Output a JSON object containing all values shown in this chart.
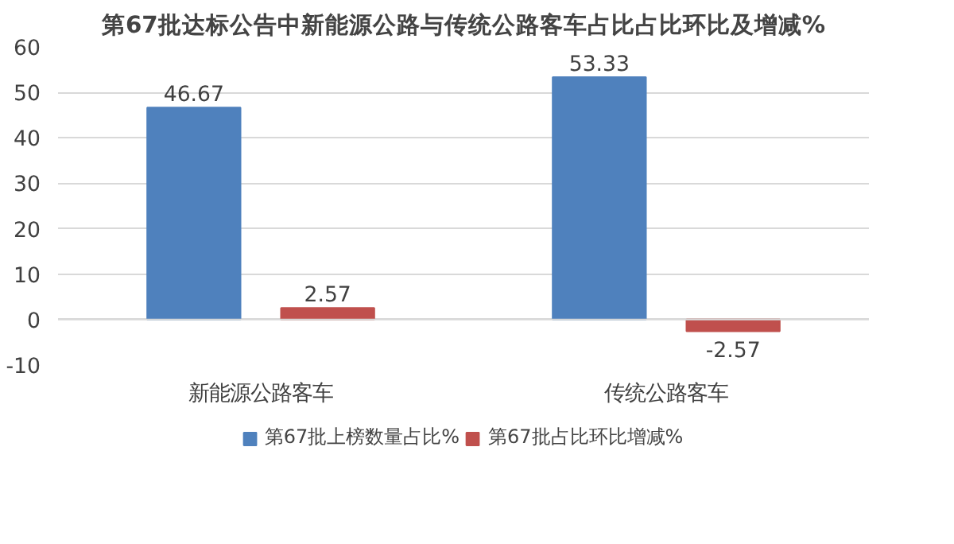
{
  "chart_data": {
    "type": "bar",
    "title": "第67批达标公告中新能源公路与传统公路客车占比占比环比及增减%",
    "categories": [
      "新能源公路客车",
      "传统公路客车"
    ],
    "series": [
      {
        "name": "第67批上榜数量占比%",
        "color": "#4f81bd",
        "values": [
          46.67,
          53.33
        ]
      },
      {
        "name": "第67批占比环比增减%",
        "color": "#c0504d",
        "values": [
          2.57,
          -2.57
        ]
      }
    ],
    "ylim": [
      -10,
      60
    ],
    "yticks": [
      -10,
      0,
      10,
      20,
      30,
      40,
      50,
      60
    ],
    "grid": "y",
    "legend": "bottom",
    "data_labels": true
  }
}
